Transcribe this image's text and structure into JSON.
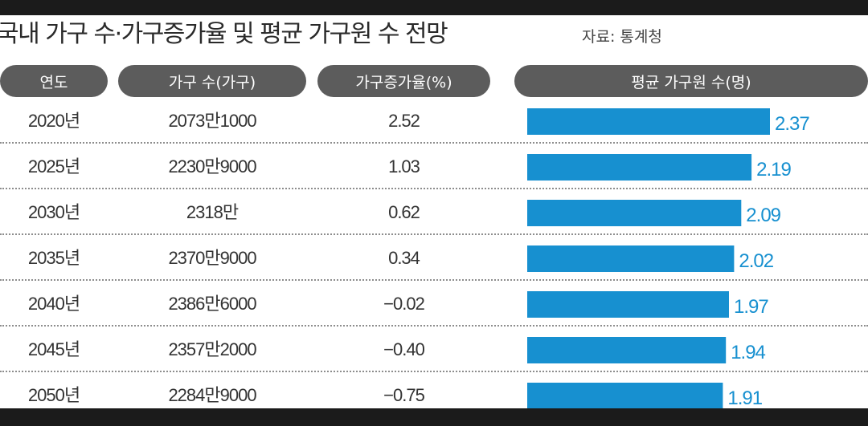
{
  "header": {
    "title": "국내 가구 수·가구증가율 및 평균 가구원 수 전망",
    "source": "자료: 통계청"
  },
  "columns": {
    "year": "연도",
    "households": "가구 수(가구)",
    "growth": "가구증가율(%)",
    "members": "평균 가구원 수(명)"
  },
  "colors": {
    "bar": "#1790d0",
    "value": "#1790d0",
    "pill": "#5c5c5c"
  },
  "rows": [
    {
      "year": "2020년",
      "households": "2073만1000",
      "growth": "2.52",
      "members": "2.37"
    },
    {
      "year": "2025년",
      "households": "2230만9000",
      "growth": "1.03",
      "members": "2.19"
    },
    {
      "year": "2030년",
      "households": "2318만",
      "growth": "0.62",
      "members": "2.09"
    },
    {
      "year": "2035년",
      "households": "2370만9000",
      "growth": "0.34",
      "members": "2.02"
    },
    {
      "year": "2040년",
      "households": "2386만6000",
      "growth": "−0.02",
      "members": "1.97"
    },
    {
      "year": "2045년",
      "households": "2357만2000",
      "growth": "−0.40",
      "members": "1.94"
    },
    {
      "year": "2050년",
      "households": "2284만9000",
      "growth": "−0.75",
      "members": "1.91"
    }
  ],
  "chart_data": {
    "type": "bar",
    "categories": [
      "2020년",
      "2025년",
      "2030년",
      "2035년",
      "2040년",
      "2045년",
      "2050년"
    ],
    "values": [
      2.37,
      2.19,
      2.09,
      2.02,
      1.97,
      1.94,
      1.91
    ]
  }
}
